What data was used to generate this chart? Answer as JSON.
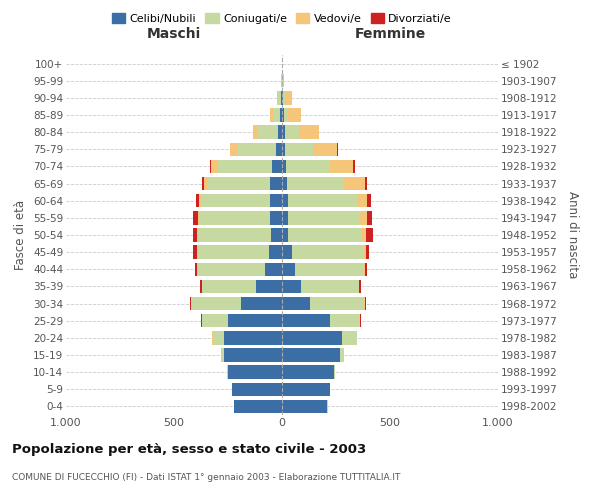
{
  "age_groups": [
    "0-4",
    "5-9",
    "10-14",
    "15-19",
    "20-24",
    "25-29",
    "30-34",
    "35-39",
    "40-44",
    "45-49",
    "50-54",
    "55-59",
    "60-64",
    "65-69",
    "70-74",
    "75-79",
    "80-84",
    "85-89",
    "90-94",
    "95-99",
    "100+"
  ],
  "birth_years": [
    "1998-2002",
    "1993-1997",
    "1988-1992",
    "1983-1987",
    "1978-1982",
    "1973-1977",
    "1968-1972",
    "1963-1967",
    "1958-1962",
    "1953-1957",
    "1948-1952",
    "1943-1947",
    "1938-1942",
    "1933-1937",
    "1928-1932",
    "1923-1927",
    "1918-1922",
    "1913-1917",
    "1908-1912",
    "1903-1907",
    "≤ 1902"
  ],
  "maschi": {
    "celibi": [
      220,
      230,
      250,
      270,
      270,
      250,
      190,
      120,
      80,
      60,
      50,
      55,
      55,
      55,
      45,
      30,
      20,
      10,
      5,
      2,
      0
    ],
    "coniugati": [
      1,
      2,
      5,
      10,
      50,
      120,
      230,
      250,
      310,
      330,
      340,
      330,
      320,
      290,
      250,
      180,
      90,
      30,
      12,
      3,
      1
    ],
    "vedovi": [
      0,
      0,
      0,
      1,
      2,
      2,
      2,
      1,
      2,
      3,
      5,
      5,
      10,
      15,
      35,
      30,
      25,
      15,
      5,
      0,
      0
    ],
    "divorziati": [
      0,
      0,
      0,
      1,
      2,
      3,
      5,
      10,
      10,
      18,
      18,
      20,
      15,
      10,
      5,
      0,
      0,
      0,
      0,
      0,
      0
    ]
  },
  "femmine": {
    "nubili": [
      210,
      220,
      240,
      270,
      280,
      220,
      130,
      90,
      60,
      45,
      30,
      30,
      30,
      25,
      20,
      15,
      15,
      10,
      5,
      2,
      0
    ],
    "coniugate": [
      1,
      2,
      5,
      15,
      65,
      140,
      250,
      265,
      320,
      335,
      340,
      330,
      320,
      260,
      200,
      130,
      65,
      20,
      10,
      2,
      1
    ],
    "vedove": [
      0,
      0,
      0,
      1,
      2,
      2,
      3,
      3,
      5,
      10,
      20,
      35,
      45,
      100,
      110,
      110,
      90,
      60,
      30,
      5,
      0
    ],
    "divorziate": [
      0,
      0,
      0,
      1,
      2,
      3,
      5,
      10,
      10,
      15,
      30,
      20,
      15,
      10,
      10,
      5,
      0,
      0,
      0,
      0,
      0
    ]
  },
  "colors": {
    "celibi": "#3a6ea5",
    "coniugati": "#c5d9a0",
    "vedovi": "#f5c67a",
    "divorziati": "#cc2222"
  },
  "xlim": 1000,
  "title": "Popolazione per età, sesso e stato civile - 2003",
  "subtitle": "COMUNE DI FUCECCHIO (FI) - Dati ISTAT 1° gennaio 2003 - Elaborazione TUTTITALIA.IT",
  "ylabel_left": "Fasce di età",
  "ylabel_right": "Anni di nascita",
  "xlabel_left": "Maschi",
  "xlabel_right": "Femmine"
}
